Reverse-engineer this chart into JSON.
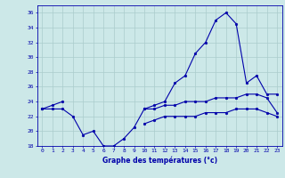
{
  "xlabel": "Graphe des températures (°c)",
  "hours": [
    0,
    1,
    2,
    3,
    4,
    5,
    6,
    7,
    8,
    9,
    10,
    11,
    12,
    13,
    14,
    15,
    16,
    17,
    18,
    19,
    20,
    21,
    22,
    23
  ],
  "line_main": [
    23,
    23,
    23,
    22,
    19.5,
    20,
    18,
    18,
    19,
    20.5,
    23,
    23.5,
    24,
    26.5,
    27.5,
    30.5,
    32,
    35,
    36,
    34.5,
    26.5,
    27.5,
    25,
    25
  ],
  "line_mid": [
    23,
    23.5,
    24,
    null,
    null,
    null,
    null,
    null,
    null,
    null,
    23,
    23,
    23.5,
    23.5,
    24,
    24,
    24,
    24.5,
    24.5,
    24.5,
    25,
    25,
    24.5,
    22.5
  ],
  "line_low": [
    null,
    null,
    null,
    null,
    null,
    null,
    null,
    null,
    null,
    null,
    21,
    21.5,
    22,
    22,
    22,
    22,
    22.5,
    22.5,
    22.5,
    23,
    23,
    23,
    22.5,
    22
  ],
  "bg_color": "#cce8e8",
  "grid_color": "#aacccc",
  "line_color": "#0000aa",
  "ylim": [
    18,
    37
  ],
  "yticks": [
    18,
    20,
    22,
    24,
    26,
    28,
    30,
    32,
    34,
    36
  ],
  "figsize": [
    3.2,
    2.0
  ],
  "dpi": 100
}
